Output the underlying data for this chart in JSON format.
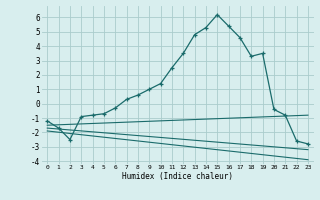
{
  "xlabel": "Humidex (Indice chaleur)",
  "bg_color": "#d8eeee",
  "grid_color": "#aacccc",
  "line_color": "#1a6b6b",
  "xlim": [
    -0.5,
    23.5
  ],
  "ylim": [
    -4.2,
    6.8
  ],
  "yticks": [
    -4,
    -3,
    -2,
    -1,
    0,
    1,
    2,
    3,
    4,
    5,
    6
  ],
  "xticks": [
    0,
    1,
    2,
    3,
    4,
    5,
    6,
    7,
    8,
    9,
    10,
    11,
    12,
    13,
    14,
    15,
    16,
    17,
    18,
    19,
    20,
    21,
    22,
    23
  ],
  "main_x": [
    0,
    1,
    2,
    3,
    4,
    5,
    6,
    7,
    8,
    9,
    10,
    11,
    12,
    13,
    14,
    15,
    16,
    17,
    18,
    19,
    20,
    21,
    22,
    23
  ],
  "main_y": [
    -1.2,
    -1.7,
    -2.5,
    -0.9,
    -0.8,
    -0.7,
    -0.3,
    0.3,
    0.6,
    1.0,
    1.4,
    2.5,
    3.5,
    4.8,
    5.3,
    6.2,
    5.4,
    4.6,
    3.3,
    3.5,
    -0.4,
    -0.8,
    -2.6,
    -2.8
  ],
  "line2_x": [
    0,
    23
  ],
  "line2_y": [
    -1.5,
    -0.8
  ],
  "line3_x": [
    0,
    23
  ],
  "line3_y": [
    -1.7,
    -3.2
  ],
  "line4_x": [
    0,
    23
  ],
  "line4_y": [
    -1.9,
    -3.9
  ]
}
